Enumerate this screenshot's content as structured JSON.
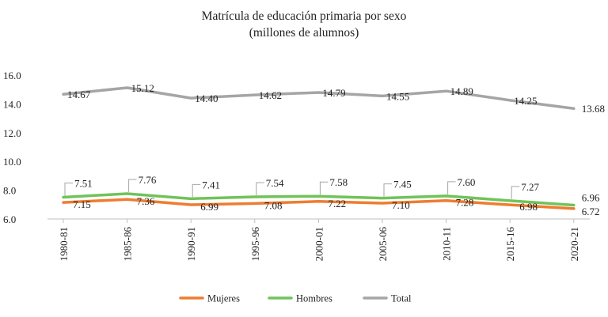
{
  "chart_data": {
    "type": "line",
    "title": "Matrícula de educación primaria por sexo",
    "subtitle": "(millones de alumnos)",
    "xlabel": "",
    "ylabel": "",
    "categories": [
      "1980-81",
      "1985-86",
      "1990-91",
      "1995-96",
      "2000-01",
      "2005-06",
      "2010-11",
      "2015-16",
      "2020-21"
    ],
    "ylim": [
      6.0,
      16.0
    ],
    "yticks": [
      "6.0",
      "8.0",
      "10.0",
      "12.0",
      "14.0",
      "16.0"
    ],
    "grid": false,
    "legend": "bottom",
    "series": [
      {
        "name": "Mujeres",
        "color": "#ED7D31",
        "values": [
          7.15,
          7.36,
          6.99,
          7.08,
          7.22,
          7.1,
          7.28,
          6.98,
          6.72
        ],
        "labels": [
          "7.15",
          "7.36",
          "6.99",
          "7.08",
          "7.22",
          "7.10",
          "7.28",
          "6.98",
          "6.72"
        ]
      },
      {
        "name": "Hombres",
        "color": "#70C35A",
        "values": [
          7.51,
          7.76,
          7.41,
          7.54,
          7.58,
          7.45,
          7.6,
          7.27,
          6.96
        ],
        "labels": [
          "7.51",
          "7.76",
          "7.41",
          "7.54",
          "7.58",
          "7.45",
          "7.60",
          "7.27",
          "6.96"
        ]
      },
      {
        "name": "Total",
        "color": "#A5A5A5",
        "values": [
          14.67,
          15.12,
          14.4,
          14.62,
          14.79,
          14.55,
          14.89,
          14.25,
          13.68
        ],
        "labels": [
          "14.67",
          "15.12",
          "14.40",
          "14.62",
          "14.79",
          "14.55",
          "14.89",
          "14.25",
          "13.68"
        ]
      }
    ]
  }
}
